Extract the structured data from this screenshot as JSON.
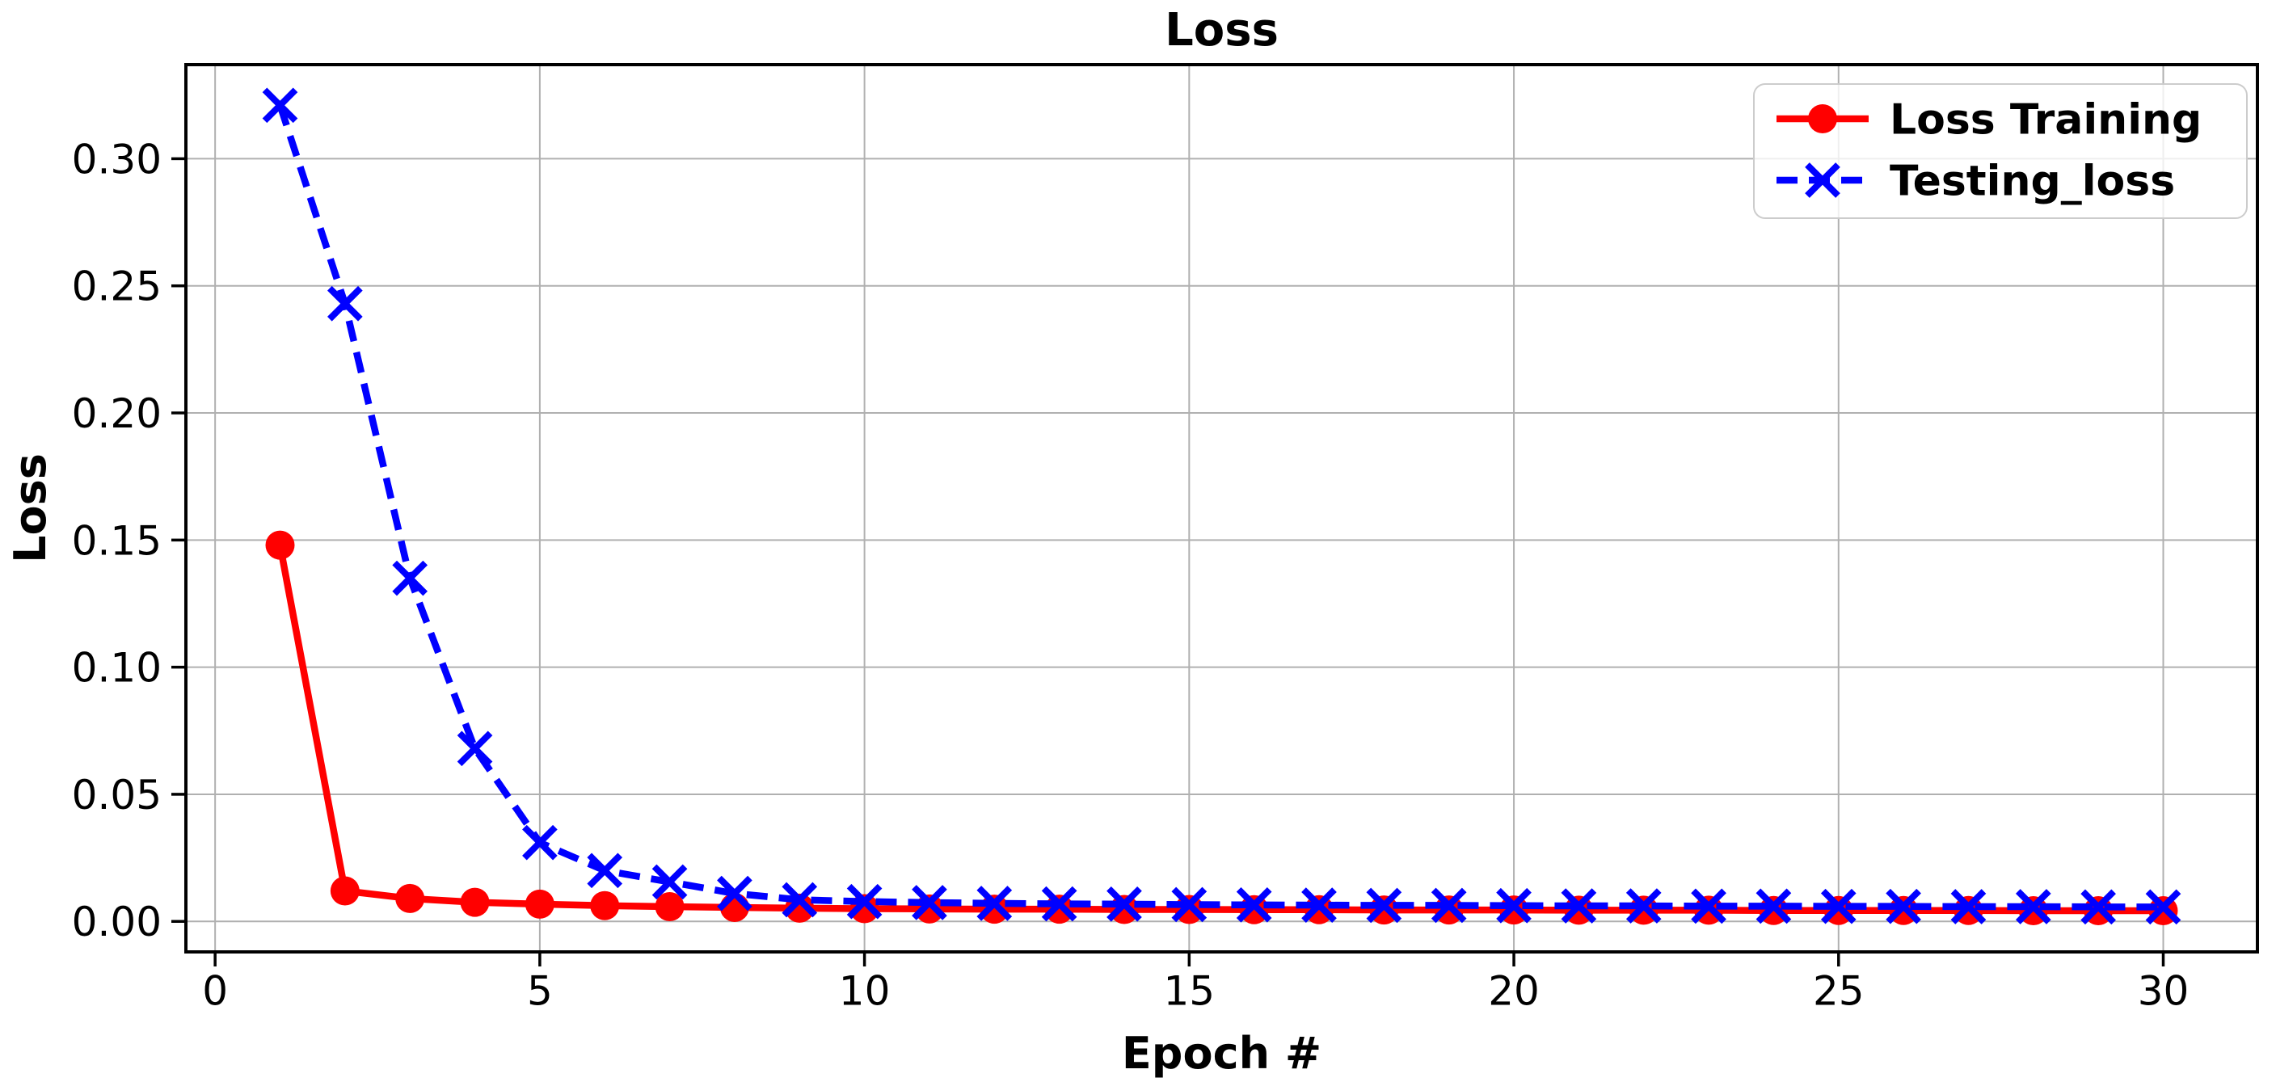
{
  "chart_data": {
    "type": "line",
    "title": "Loss",
    "xlabel": "Epoch #",
    "ylabel": "Loss",
    "grid": true,
    "grid_color": "#b0b0b0",
    "background": "#ffffff",
    "spine_color": "#000000",
    "legend_position": "upper right",
    "xlim": [
      -0.45,
      31.45
    ],
    "ylim": [
      -0.012,
      0.337
    ],
    "xticks": [
      0,
      5,
      10,
      15,
      20,
      25,
      30
    ],
    "yticks": [
      0.0,
      0.05,
      0.1,
      0.15,
      0.2,
      0.25,
      0.3
    ],
    "xtick_labels": [
      "0",
      "5",
      "10",
      "15",
      "20",
      "25",
      "30"
    ],
    "ytick_labels": [
      "0.00",
      "0.05",
      "0.10",
      "0.15",
      "0.20",
      "0.25",
      "0.30"
    ],
    "x": [
      1,
      2,
      3,
      4,
      5,
      6,
      7,
      8,
      9,
      10,
      11,
      12,
      13,
      14,
      15,
      16,
      17,
      18,
      19,
      20,
      21,
      22,
      23,
      24,
      25,
      26,
      27,
      28,
      29,
      30
    ],
    "series": [
      {
        "name": "Loss Training",
        "color": "#ff0000",
        "linestyle": "solid",
        "marker": "circle",
        "values": [
          0.148,
          0.012,
          0.009,
          0.0075,
          0.0068,
          0.0062,
          0.0058,
          0.0055,
          0.0052,
          0.005,
          0.0049,
          0.0048,
          0.0048,
          0.0047,
          0.0047,
          0.0046,
          0.0046,
          0.0045,
          0.0045,
          0.0045,
          0.0044,
          0.0044,
          0.0044,
          0.0043,
          0.0043,
          0.0043,
          0.0043,
          0.0042,
          0.0042,
          0.0042
        ]
      },
      {
        "name": "Testing_loss",
        "color": "#0000ff",
        "linestyle": "dashed",
        "marker": "x",
        "values": [
          0.321,
          0.243,
          0.135,
          0.068,
          0.031,
          0.02,
          0.0155,
          0.011,
          0.0085,
          0.0078,
          0.0074,
          0.0071,
          0.0069,
          0.0068,
          0.0066,
          0.0065,
          0.0064,
          0.0063,
          0.0063,
          0.0062,
          0.0061,
          0.0061,
          0.006,
          0.006,
          0.0059,
          0.0059,
          0.0058,
          0.0058,
          0.0057,
          0.0057
        ]
      }
    ]
  }
}
